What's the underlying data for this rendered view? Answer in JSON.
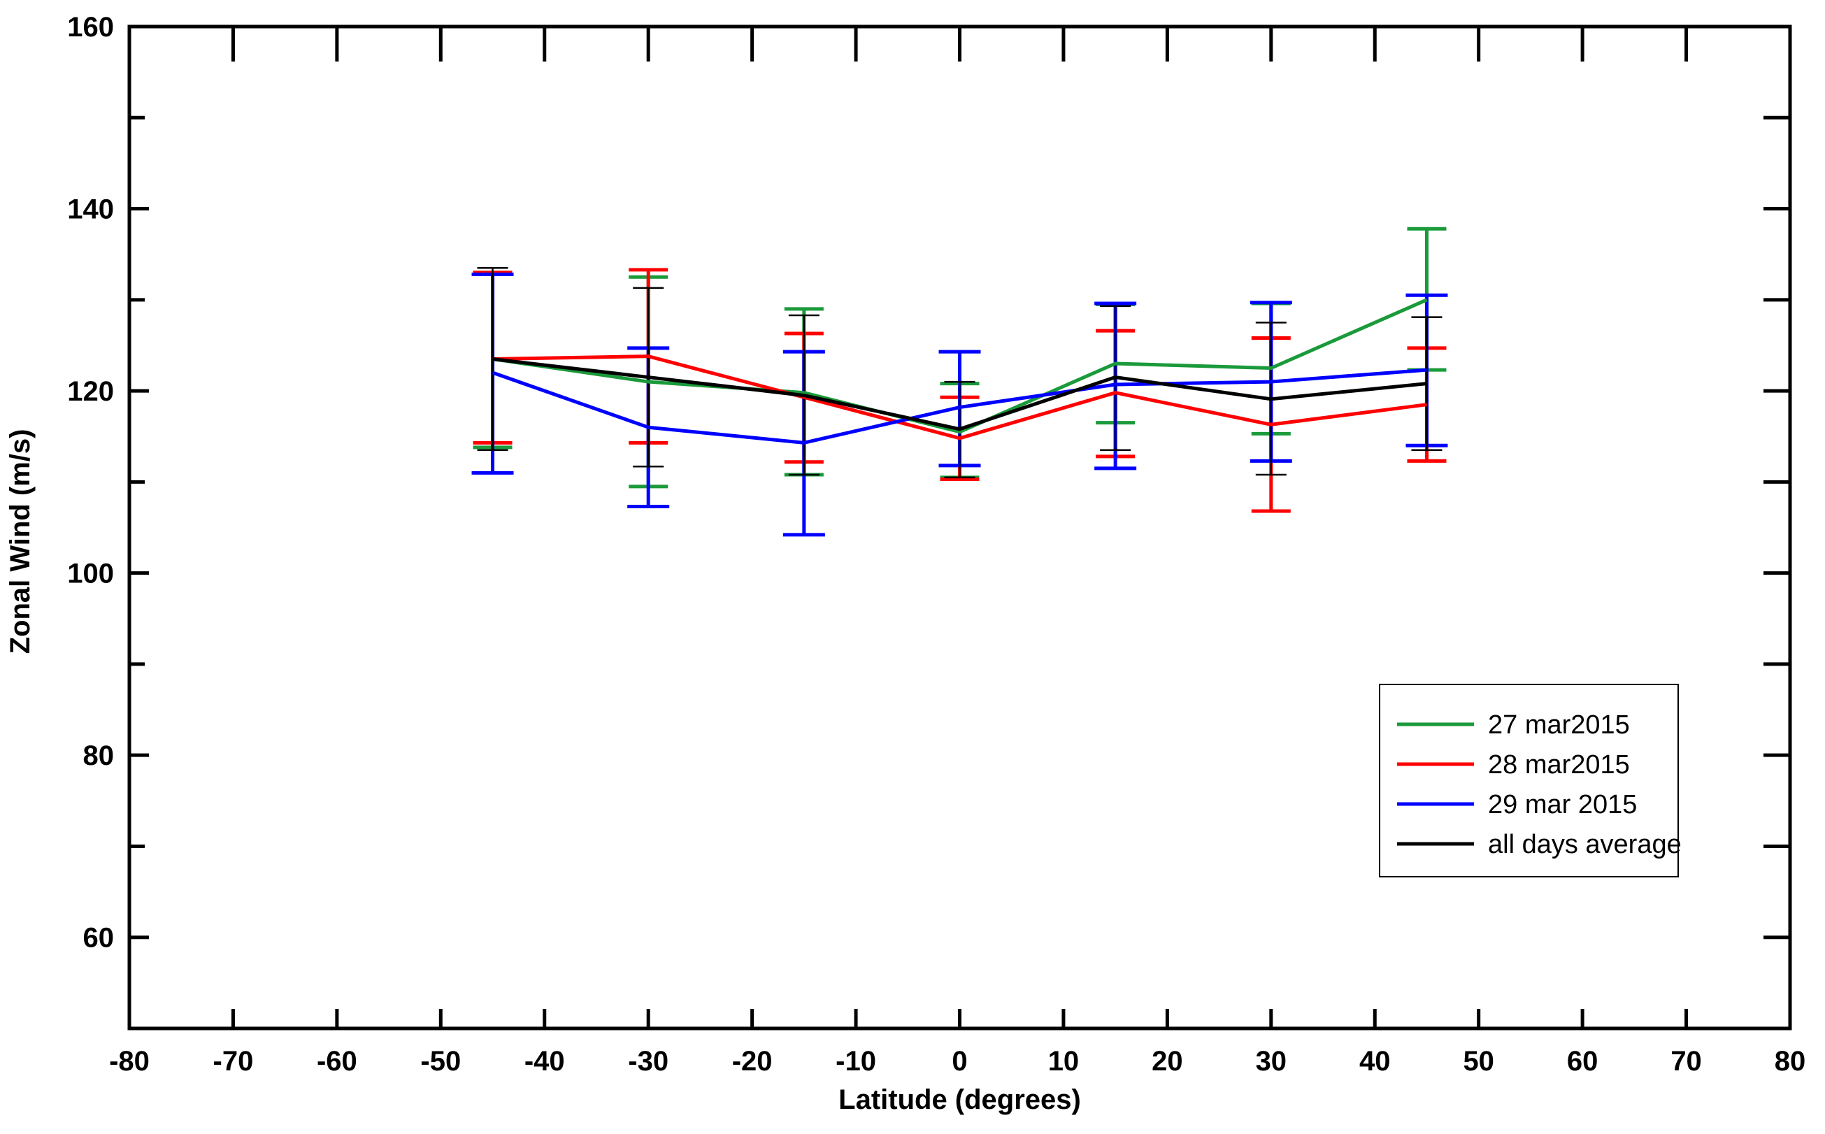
{
  "chart_data": {
    "type": "line",
    "title": "",
    "xlabel": "Latitude (degrees)",
    "ylabel": "Zonal Wind (m/s)",
    "xlim": [
      -80,
      80
    ],
    "ylim": [
      50,
      160
    ],
    "x_ticks": [
      -80,
      -70,
      -60,
      -50,
      -40,
      -30,
      -20,
      -10,
      0,
      10,
      20,
      30,
      40,
      50,
      60,
      70,
      80
    ],
    "x_tick_labels": [
      "-80",
      "-70",
      "-60",
      "-50",
      "-40",
      "-30",
      "-20",
      "-10",
      "0",
      "10",
      "20",
      "30",
      "40",
      "50",
      "60",
      "70",
      "80"
    ],
    "y_ticks": [
      60,
      80,
      100,
      120,
      140,
      160
    ],
    "y_tick_labels": [
      "60",
      "80",
      "100",
      "120",
      "140",
      "160"
    ],
    "y_minor_ticks": [
      50,
      70,
      90,
      110,
      130,
      150
    ],
    "grid": false,
    "legend_position": "bottom-right",
    "x": [
      -45,
      -30,
      -15,
      0,
      15,
      30,
      45
    ],
    "series": [
      {
        "name": "27 mar2015",
        "color": "#1a9a3a",
        "values": [
          123.5,
          121.0,
          119.8,
          115.5,
          123.0,
          122.5,
          130.0
        ],
        "err_low": [
          113.8,
          109.5,
          110.8,
          110.5,
          116.5,
          115.3,
          122.3
        ],
        "err_high": [
          133.0,
          132.5,
          129.0,
          120.8,
          129.5,
          129.6,
          137.8
        ]
      },
      {
        "name": "28 mar2015",
        "color": "#ff0000",
        "values": [
          123.5,
          123.8,
          119.3,
          114.8,
          119.8,
          116.3,
          118.5
        ],
        "err_low": [
          114.3,
          114.3,
          112.2,
          110.3,
          112.8,
          106.8,
          112.3
        ],
        "err_high": [
          133.0,
          133.3,
          126.3,
          119.3,
          126.6,
          125.8,
          124.7
        ]
      },
      {
        "name": "29 mar 2015",
        "color": "#0000ff",
        "values": [
          122.0,
          116.0,
          114.3,
          118.2,
          120.7,
          121.0,
          122.3
        ],
        "err_low": [
          111.0,
          107.3,
          104.2,
          111.8,
          111.5,
          112.3,
          114.0
        ],
        "err_high": [
          132.8,
          124.7,
          124.3,
          124.3,
          129.6,
          129.7,
          130.5
        ]
      },
      {
        "name": "all days average",
        "color": "#000000",
        "values": [
          123.5,
          121.5,
          119.5,
          115.8,
          121.5,
          119.1,
          120.8
        ],
        "err_low": [
          113.5,
          111.7,
          110.8,
          110.5,
          113.5,
          110.8,
          113.5
        ],
        "err_high": [
          133.5,
          131.3,
          128.3,
          121.0,
          129.3,
          127.5,
          128.1
        ]
      }
    ]
  }
}
